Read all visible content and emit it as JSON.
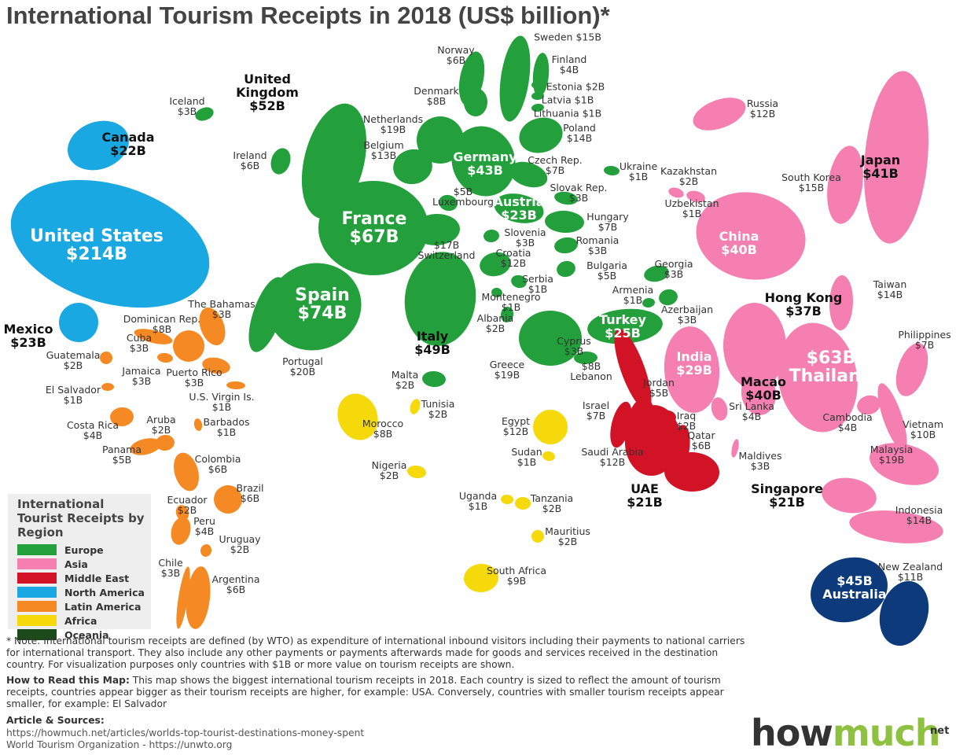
{
  "title": "International Tourism Receipts in 2018 (US$ billion)*",
  "legend": {
    "title": "International Tourist Receipts by Region"
  },
  "regions": [
    {
      "name": "Europe",
      "color": "#23a03b",
      "countries": [
        {
          "name": "Iceland",
          "value": "$3B"
        },
        {
          "name": "Ireland",
          "value": "$6B"
        },
        {
          "name": "United Kingdom",
          "value": "$52B"
        },
        {
          "name": "Norway",
          "value": "$6B"
        },
        {
          "name": "Sweden",
          "value": "$15B"
        },
        {
          "name": "Finland",
          "value": "$4B"
        },
        {
          "name": "Denmark",
          "value": "$8B"
        },
        {
          "name": "Estonia",
          "value": "$2B"
        },
        {
          "name": "Latvia",
          "value": "$1B"
        },
        {
          "name": "Lithuania",
          "value": "$1B"
        },
        {
          "name": "Netherlands",
          "value": "$19B"
        },
        {
          "name": "Belgium",
          "value": "$13B"
        },
        {
          "name": "Poland",
          "value": "$14B"
        },
        {
          "name": "Germany",
          "value": "$43B"
        },
        {
          "name": "Czech Rep.",
          "value": "$7B"
        },
        {
          "name": "Luxembourg",
          "value": "$5B"
        },
        {
          "name": "Austria",
          "value": "$23B"
        },
        {
          "name": "Slovak Rep.",
          "value": "$3B"
        },
        {
          "name": "Ukraine",
          "value": "$1B"
        },
        {
          "name": "Hungary",
          "value": "$7B"
        },
        {
          "name": "France",
          "value": "$67B"
        },
        {
          "name": "Switzerland",
          "value": "$17B"
        },
        {
          "name": "Slovenia",
          "value": "$3B"
        },
        {
          "name": "Romania",
          "value": "$3B"
        },
        {
          "name": "Croatia",
          "value": "$12B"
        },
        {
          "name": "Bulgaria",
          "value": "$5B"
        },
        {
          "name": "Spain",
          "value": "$74B"
        },
        {
          "name": "Portugal",
          "value": "$20B"
        },
        {
          "name": "Serbia",
          "value": "$1B"
        },
        {
          "name": "Montenegro",
          "value": "$1B"
        },
        {
          "name": "Albania",
          "value": "$2B"
        },
        {
          "name": "Italy",
          "value": "$49B"
        },
        {
          "name": "Malta",
          "value": "$2B"
        },
        {
          "name": "Greece",
          "value": "$19B"
        },
        {
          "name": "Cyprus",
          "value": "$3B"
        },
        {
          "name": "Turkey",
          "value": "$25B"
        },
        {
          "name": "Armenia",
          "value": "$1B"
        },
        {
          "name": "Georgia",
          "value": "$3B"
        },
        {
          "name": "Azerbaijan",
          "value": "$3B"
        }
      ]
    },
    {
      "name": "Asia",
      "color": "#f47fb0",
      "countries": [
        {
          "name": "Russia",
          "value": "$12B"
        },
        {
          "name": "Kazakhstan",
          "value": "$2B"
        },
        {
          "name": "Uzbekistan",
          "value": "$1B"
        },
        {
          "name": "China",
          "value": "$40B"
        },
        {
          "name": "South Korea",
          "value": "$15B"
        },
        {
          "name": "Japan",
          "value": "$41B"
        },
        {
          "name": "Taiwan",
          "value": "$14B"
        },
        {
          "name": "Hong Kong",
          "value": "$37B"
        },
        {
          "name": "India",
          "value": "$29B"
        },
        {
          "name": "Macao",
          "value": "$40B"
        },
        {
          "name": "Thailand",
          "value": "$63B"
        },
        {
          "name": "Sri Lanka",
          "value": "$4B"
        },
        {
          "name": "Cambodia",
          "value": "$4B"
        },
        {
          "name": "Vietnam",
          "value": "$10B"
        },
        {
          "name": "Philippines",
          "value": "$7B"
        },
        {
          "name": "Malaysia",
          "value": "$19B"
        },
        {
          "name": "Maldives",
          "value": "$3B"
        },
        {
          "name": "Singapore",
          "value": "$21B"
        },
        {
          "name": "Indonesia",
          "value": "$14B"
        }
      ]
    },
    {
      "name": "Middle East",
      "color": "#d21326",
      "countries": [
        {
          "name": "Lebanon",
          "value": "$8B"
        },
        {
          "name": "Jordan",
          "value": "$5B"
        },
        {
          "name": "Israel",
          "value": "$7B"
        },
        {
          "name": "Iraq",
          "value": "$2B"
        },
        {
          "name": "Qatar",
          "value": "$6B"
        },
        {
          "name": "Saudi Arabia",
          "value": "$12B"
        },
        {
          "name": "UAE",
          "value": "$21B"
        }
      ]
    },
    {
      "name": "North America",
      "color": "#1aa8e2",
      "countries": [
        {
          "name": "Canada",
          "value": "$22B"
        },
        {
          "name": "United States",
          "value": "$214B"
        },
        {
          "name": "Mexico",
          "value": "$23B"
        }
      ]
    },
    {
      "name": "Latin America",
      "color": "#f58a24",
      "countries": [
        {
          "name": "The Bahamas",
          "value": "$3B"
        },
        {
          "name": "Dominican Rep.",
          "value": "$8B"
        },
        {
          "name": "Cuba",
          "value": "$3B"
        },
        {
          "name": "Puerto Rico",
          "value": "$3B"
        },
        {
          "name": "Jamaica",
          "value": "$3B"
        },
        {
          "name": "Guatemala",
          "value": "$2B"
        },
        {
          "name": "U.S. Virgin Is.",
          "value": "$1B"
        },
        {
          "name": "El Salvador",
          "value": "$1B"
        },
        {
          "name": "Costa Rica",
          "value": "$4B"
        },
        {
          "name": "Aruba",
          "value": "$2B"
        },
        {
          "name": "Barbados",
          "value": "$1B"
        },
        {
          "name": "Panama",
          "value": "$5B"
        },
        {
          "name": "Colombia",
          "value": "$6B"
        },
        {
          "name": "Ecuador",
          "value": "$2B"
        },
        {
          "name": "Brazil",
          "value": "$6B"
        },
        {
          "name": "Peru",
          "value": "$4B"
        },
        {
          "name": "Uruguay",
          "value": "$2B"
        },
        {
          "name": "Chile",
          "value": "$3B"
        },
        {
          "name": "Argentina",
          "value": "$6B"
        }
      ]
    },
    {
      "name": "Africa",
      "color": "#f5d90a",
      "countries": [
        {
          "name": "Morocco",
          "value": "$8B"
        },
        {
          "name": "Tunisia",
          "value": "$2B"
        },
        {
          "name": "Egypt",
          "value": "$12B"
        },
        {
          "name": "Sudan",
          "value": "$1B"
        },
        {
          "name": "Nigeria",
          "value": "$2B"
        },
        {
          "name": "Uganda",
          "value": "$1B"
        },
        {
          "name": "Tanzania",
          "value": "$2B"
        },
        {
          "name": "Mauritius",
          "value": "$2B"
        },
        {
          "name": "South Africa",
          "value": "$9B"
        }
      ]
    },
    {
      "name": "Oceania",
      "color": "#1b4b1b",
      "map_color": "#0c3a7a",
      "countries": [
        {
          "name": "Australia",
          "value": "$45B"
        },
        {
          "name": "New Zealand",
          "value": "$11B"
        }
      ]
    }
  ],
  "footer": {
    "note": "* Note: International tourism receipts are defined (by WTO) as expenditure of international inbound visitors including their payments to national carriers for international transport. They also include any other payments or payments afterwards made for goods and services received in the destination country.  For visualization purposes only countries with $1B or more value on tourism receipts are shown.",
    "how_to_heading": "How to Read this Map:",
    "how_to": " This map shows the biggest international tourism receipts in 2018. Each country is sized to reflect the amount of tourism receipts, countries appear bigger as their tourism receipts are higher, for example: USA. Conversely, countries with smaller tourism receipts appear smaller, for example: El Salvador",
    "sources_heading": "Article & Sources:",
    "sources": [
      "https://howmuch.net/articles/worlds-top-tourist-destinations-money-spent",
      "World Tourism Organization - https://unwto.org"
    ],
    "brand": {
      "how": "how",
      "much": "much",
      "net": "net"
    }
  }
}
